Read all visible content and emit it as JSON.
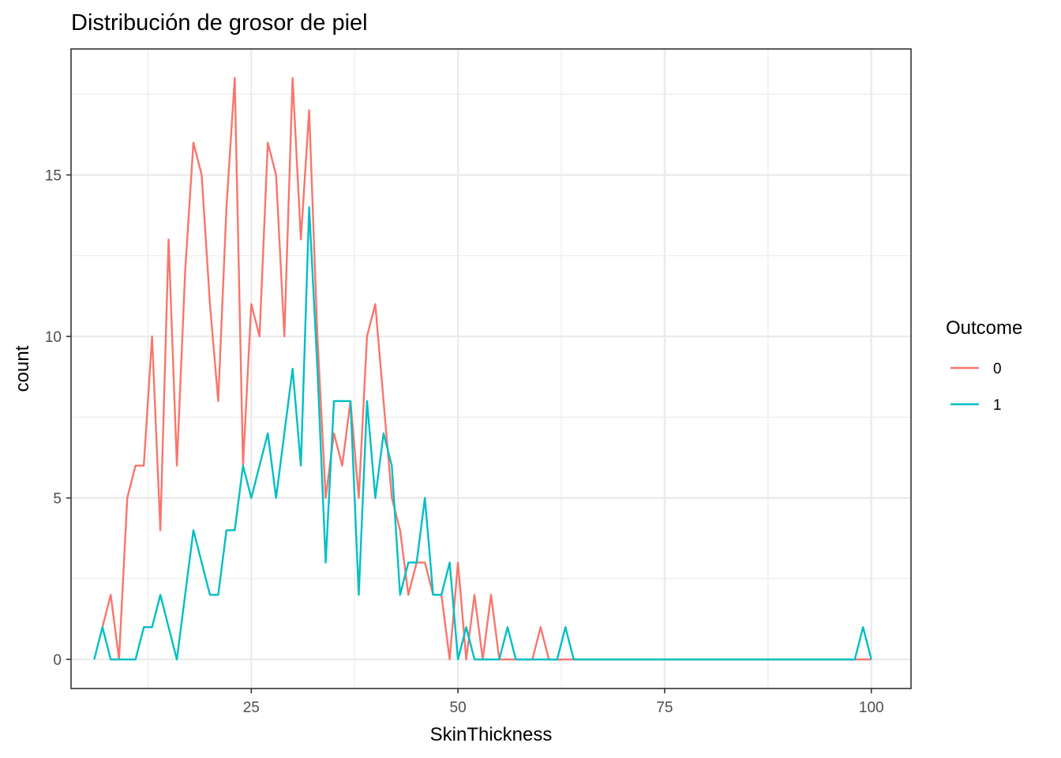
{
  "chart_data": {
    "type": "line",
    "title": "Distribución de grosor de piel",
    "xlabel": "SkinThickness",
    "ylabel": "count",
    "xlim": [
      3.2,
      104.8
    ],
    "ylim": [
      -0.9,
      18.9
    ],
    "x_ticks": [
      25,
      50,
      75,
      100
    ],
    "y_ticks": [
      0,
      5,
      10,
      15
    ],
    "grid": true,
    "legend": {
      "title": "Outcome",
      "position": "right"
    },
    "colors": {
      "0": "#F8766D",
      "1": "#00BFC4",
      "grid": "#ebebeb",
      "border": "#333333"
    },
    "series": [
      {
        "name": "0",
        "color": "#F8766D",
        "points": [
          [
            7,
            1
          ],
          [
            8,
            2
          ],
          [
            9,
            0
          ],
          [
            10,
            5
          ],
          [
            11,
            6
          ],
          [
            12,
            6
          ],
          [
            13,
            10
          ],
          [
            14,
            4
          ],
          [
            15,
            13
          ],
          [
            16,
            6
          ],
          [
            17,
            12
          ],
          [
            18,
            16
          ],
          [
            19,
            15
          ],
          [
            20,
            11
          ],
          [
            21,
            8
          ],
          [
            22,
            14
          ],
          [
            23,
            18
          ],
          [
            24,
            6
          ],
          [
            25,
            11
          ],
          [
            26,
            10
          ],
          [
            27,
            16
          ],
          [
            28,
            15
          ],
          [
            29,
            10
          ],
          [
            30,
            18
          ],
          [
            31,
            13
          ],
          [
            32,
            17
          ],
          [
            33,
            10
          ],
          [
            34,
            5
          ],
          [
            35,
            7
          ],
          [
            36,
            6
          ],
          [
            37,
            8
          ],
          [
            38,
            5
          ],
          [
            39,
            10
          ],
          [
            40,
            11
          ],
          [
            41,
            8
          ],
          [
            42,
            5
          ],
          [
            43,
            4
          ],
          [
            44,
            2
          ],
          [
            45,
            3
          ],
          [
            46,
            3
          ],
          [
            47,
            2
          ],
          [
            48,
            2
          ],
          [
            49,
            0
          ],
          [
            50,
            3
          ],
          [
            51,
            0
          ],
          [
            52,
            2
          ],
          [
            53,
            0
          ],
          [
            54,
            2
          ],
          [
            55,
            0
          ],
          [
            56,
            0
          ],
          [
            57,
            0
          ],
          [
            58,
            0
          ],
          [
            59,
            0
          ],
          [
            60,
            1
          ],
          [
            61,
            0
          ],
          [
            62,
            0
          ],
          [
            63,
            0
          ],
          [
            64,
            0
          ],
          [
            99,
            0
          ],
          [
            100,
            0
          ]
        ]
      },
      {
        "name": "1",
        "color": "#00BFC4",
        "points": [
          [
            6,
            0
          ],
          [
            7,
            1
          ],
          [
            8,
            0
          ],
          [
            9,
            0
          ],
          [
            10,
            0
          ],
          [
            11,
            0
          ],
          [
            12,
            1
          ],
          [
            13,
            1
          ],
          [
            14,
            2
          ],
          [
            15,
            1
          ],
          [
            16,
            0
          ],
          [
            17,
            2
          ],
          [
            18,
            4
          ],
          [
            19,
            3
          ],
          [
            20,
            2
          ],
          [
            21,
            2
          ],
          [
            22,
            4
          ],
          [
            23,
            4
          ],
          [
            24,
            6
          ],
          [
            25,
            5
          ],
          [
            26,
            6
          ],
          [
            27,
            7
          ],
          [
            28,
            5
          ],
          [
            29,
            7
          ],
          [
            30,
            9
          ],
          [
            31,
            6
          ],
          [
            32,
            14
          ],
          [
            33,
            9
          ],
          [
            34,
            3
          ],
          [
            35,
            8
          ],
          [
            36,
            8
          ],
          [
            37,
            8
          ],
          [
            38,
            2
          ],
          [
            39,
            8
          ],
          [
            40,
            5
          ],
          [
            41,
            7
          ],
          [
            42,
            6
          ],
          [
            43,
            2
          ],
          [
            44,
            3
          ],
          [
            45,
            3
          ],
          [
            46,
            5
          ],
          [
            47,
            2
          ],
          [
            48,
            2
          ],
          [
            49,
            3
          ],
          [
            50,
            0
          ],
          [
            51,
            1
          ],
          [
            52,
            0
          ],
          [
            53,
            0
          ],
          [
            54,
            0
          ],
          [
            55,
            0
          ],
          [
            56,
            1
          ],
          [
            57,
            0
          ],
          [
            58,
            0
          ],
          [
            59,
            0
          ],
          [
            60,
            0
          ],
          [
            61,
            0
          ],
          [
            62,
            0
          ],
          [
            63,
            1
          ],
          [
            64,
            0
          ],
          [
            98,
            0
          ],
          [
            99,
            1
          ],
          [
            100,
            0
          ]
        ]
      }
    ]
  }
}
